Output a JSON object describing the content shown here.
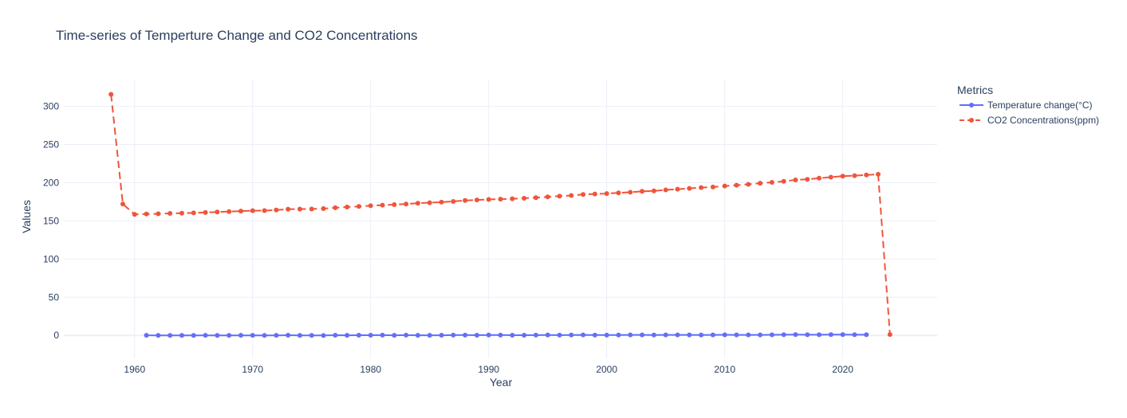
{
  "chart_data": {
    "type": "line",
    "title": "Time-series of Temperture Change and CO2 Concentrations",
    "xlabel": "Year",
    "ylabel": "Values",
    "xlim": [
      1954,
      2028
    ],
    "ylim": [
      -30,
      335
    ],
    "xticks": [
      1960,
      1970,
      1980,
      1990,
      2000,
      2010,
      2020
    ],
    "yticks": [
      0,
      50,
      100,
      150,
      200,
      250,
      300
    ],
    "grid": true,
    "legend": {
      "title": "Metrics",
      "placement": "top-right"
    },
    "series": [
      {
        "name": "Temperature  change(°C)",
        "color": "#636efa",
        "dash": "solid",
        "x": [
          1961,
          1962,
          1963,
          1964,
          1965,
          1966,
          1967,
          1968,
          1969,
          1970,
          1971,
          1972,
          1973,
          1974,
          1975,
          1976,
          1977,
          1978,
          1979,
          1980,
          1981,
          1982,
          1983,
          1984,
          1985,
          1986,
          1987,
          1988,
          1989,
          1990,
          1991,
          1992,
          1993,
          1994,
          1995,
          1996,
          1997,
          1998,
          1999,
          2000,
          2001,
          2002,
          2003,
          2004,
          2005,
          2006,
          2007,
          2008,
          2009,
          2010,
          2011,
          2012,
          2013,
          2014,
          2015,
          2016,
          2017,
          2018,
          2019,
          2020,
          2021,
          2022
        ],
        "y": [
          0.16,
          0.01,
          0.02,
          -0.07,
          -0.05,
          0.05,
          0.02,
          -0.02,
          0.08,
          0.06,
          -0.08,
          0.05,
          0.25,
          -0.07,
          0.03,
          -0.1,
          0.2,
          0.11,
          0.23,
          0.27,
          0.33,
          0.13,
          0.31,
          0.16,
          0.12,
          0.19,
          0.33,
          0.4,
          0.28,
          0.45,
          0.41,
          0.22,
          0.24,
          0.32,
          0.45,
          0.33,
          0.46,
          0.61,
          0.4,
          0.4,
          0.54,
          0.62,
          0.61,
          0.53,
          0.68,
          0.64,
          0.66,
          0.54,
          0.64,
          0.72,
          0.61,
          0.64,
          0.68,
          0.74,
          0.9,
          1.01,
          0.92,
          0.85,
          0.98,
          1.01,
          0.85,
          0.89
        ]
      },
      {
        "name": "CO2 Concentrations(ppm)",
        "color": "#ef553b",
        "dash": "dash",
        "x": [
          1958,
          1959,
          1960,
          1961,
          1962,
          1963,
          1964,
          1965,
          1966,
          1967,
          1968,
          1969,
          1970,
          1971,
          1972,
          1973,
          1974,
          1975,
          1976,
          1977,
          1978,
          1979,
          1980,
          1981,
          1982,
          1983,
          1984,
          1985,
          1986,
          1987,
          1988,
          1989,
          1990,
          1991,
          1992,
          1993,
          1994,
          1995,
          1996,
          1997,
          1998,
          1999,
          2000,
          2001,
          2002,
          2003,
          2004,
          2005,
          2006,
          2007,
          2008,
          2009,
          2010,
          2011,
          2012,
          2013,
          2014,
          2015,
          2016,
          2017,
          2018,
          2019,
          2020,
          2021,
          2022,
          2023,
          2024
        ],
        "y": [
          315.7,
          172,
          158.5,
          159,
          159.3,
          159.8,
          160.1,
          160.4,
          161,
          161.6,
          162.2,
          162.8,
          163.3,
          163.5,
          164.2,
          165.3,
          165.4,
          165.5,
          166.1,
          167.2,
          168.1,
          168.9,
          169.8,
          170.6,
          171.3,
          172.1,
          173.1,
          173.8,
          174.5,
          175.5,
          176.7,
          177.4,
          178,
          178.5,
          179,
          179.6,
          180.4,
          181.4,
          182.4,
          183.2,
          184.6,
          185.2,
          185.8,
          186.7,
          187.5,
          188.7,
          189.2,
          190.5,
          191.5,
          192.5,
          193.6,
          194.3,
          195.6,
          196.7,
          197.9,
          199.3,
          200.5,
          201.8,
          203.6,
          204.4,
          205.9,
          207.2,
          208.6,
          209.2,
          210.1,
          211,
          1.2
        ]
      }
    ]
  }
}
